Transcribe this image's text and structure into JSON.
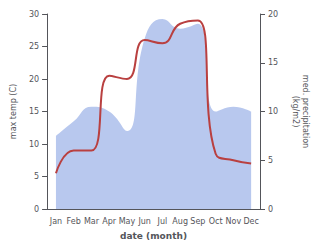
{
  "chart_data": {
    "type": "line",
    "xlabel": "date (month)",
    "ylabel": "max temp (C)",
    "y2label": "med. precipitation\n(kg/m2)",
    "categories": [
      "Jan",
      "Feb",
      "Mar",
      "Apr",
      "May",
      "Jun",
      "Jul",
      "Aug",
      "Sep",
      "Oct",
      "Nov",
      "Dec"
    ],
    "series": [
      {
        "type": "area",
        "axis": "y2",
        "color": "#b8c8ee",
        "values": [
          7.5,
          9.0,
          10.5,
          10.0,
          8.0,
          17.5,
          19.5,
          18.5,
          19.0,
          10.0,
          10.5,
          10.0
        ]
      },
      {
        "type": "line",
        "color": "#b94040",
        "values": [
          5.5,
          9.0,
          9.0,
          20.5,
          20.0,
          26.0,
          25.5,
          28.5,
          29.0,
          8.5,
          7.5,
          7.0
        ]
      }
    ],
    "ylim": [
      0,
      30
    ],
    "yticks": [
      0,
      5,
      10,
      15,
      20,
      25,
      30
    ],
    "y2lim": [
      0,
      20
    ],
    "y2ticks": [
      0,
      5,
      10,
      15,
      20
    ],
    "grid": false
  }
}
